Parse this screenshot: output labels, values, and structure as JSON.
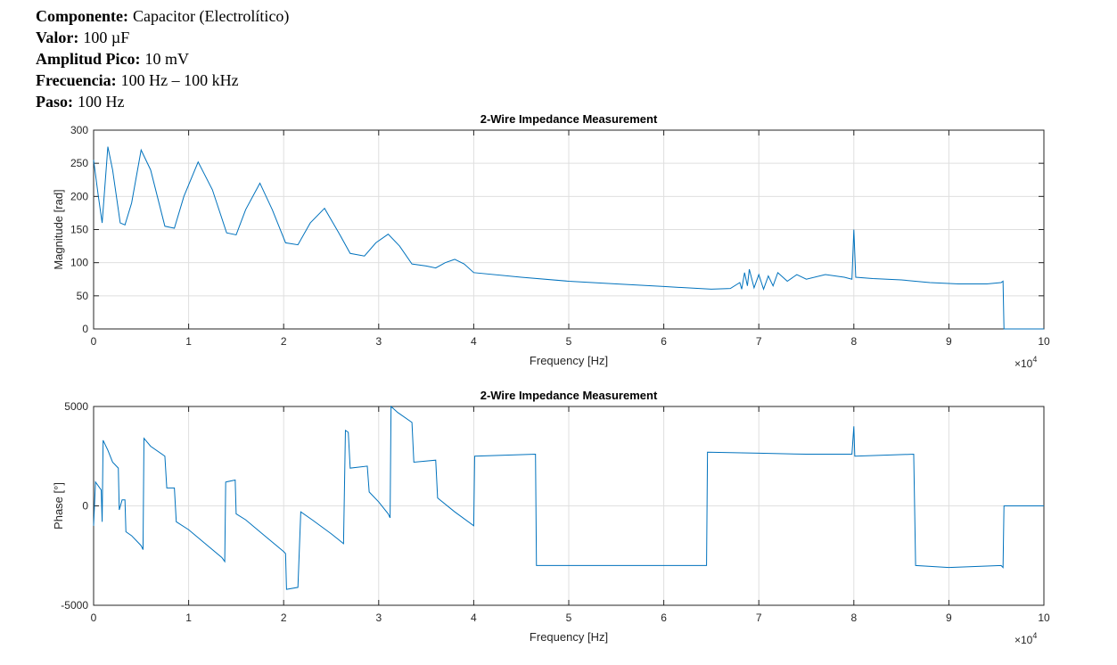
{
  "header": {
    "lines": [
      {
        "label": "Componente:",
        "value": "Capacitor (Electrolítico)"
      },
      {
        "label": "Valor:",
        "value": "100 µF"
      },
      {
        "label": "Amplitud Pico:",
        "value": "10 mV"
      },
      {
        "label": "Frecuencia:",
        "value": "100 Hz – 100 kHz"
      },
      {
        "label": "Paso:",
        "value": "100 Hz"
      }
    ]
  },
  "chart_data": [
    {
      "type": "line",
      "title": "2-Wire Impedance Measurement",
      "x_label": "Frequency [Hz]",
      "y_label": "Magnitude [rad]",
      "x_scale": {
        "base": "×10",
        "exponent": "4"
      },
      "color": "#0072bd",
      "grid": true,
      "xlim": [
        0,
        10
      ],
      "xticks": [
        0,
        1,
        2,
        3,
        4,
        5,
        6,
        7,
        8,
        9,
        10
      ],
      "ylim": [
        0,
        300
      ],
      "yticks": [
        0,
        50,
        100,
        150,
        200,
        250,
        300
      ],
      "x": [
        0,
        0.05,
        0.09,
        0.15,
        0.2,
        0.28,
        0.33,
        0.4,
        0.5,
        0.6,
        0.75,
        0.85,
        0.95,
        1.1,
        1.25,
        1.4,
        1.5,
        1.6,
        1.75,
        1.88,
        2.02,
        2.15,
        2.28,
        2.43,
        2.58,
        2.7,
        2.85,
        2.97,
        3.1,
        3.22,
        3.35,
        3.5,
        3.6,
        3.7,
        3.8,
        3.9,
        4.0,
        4.5,
        5.0,
        5.5,
        6.0,
        6.5,
        6.7,
        6.8,
        6.82,
        6.85,
        6.88,
        6.9,
        6.95,
        7.0,
        7.05,
        7.1,
        7.15,
        7.2,
        7.3,
        7.4,
        7.5,
        7.7,
        7.9,
        7.98,
        8.0,
        8.02,
        8.2,
        8.5,
        8.8,
        9.1,
        9.4,
        9.55,
        9.57,
        9.58,
        10
      ],
      "values": [
        255,
        200,
        160,
        275,
        240,
        160,
        157,
        190,
        270,
        240,
        155,
        152,
        200,
        252,
        210,
        145,
        142,
        180,
        220,
        180,
        130,
        127,
        160,
        182,
        145,
        114,
        110,
        130,
        143,
        125,
        98,
        95,
        92,
        100,
        105,
        98,
        85,
        78,
        72,
        68,
        64,
        60,
        61,
        70,
        60,
        85,
        65,
        90,
        62,
        82,
        60,
        80,
        65,
        85,
        72,
        82,
        75,
        82,
        78,
        75,
        150,
        78,
        76,
        74,
        70,
        68,
        68,
        70,
        72,
        0,
        0
      ]
    },
    {
      "type": "line",
      "title": "2-Wire Impedance Measurement",
      "x_label": "Frequency [Hz]",
      "y_label": "Phase [°]",
      "x_scale": {
        "base": "×10",
        "exponent": "4"
      },
      "color": "#0072bd",
      "grid": true,
      "xlim": [
        0,
        10
      ],
      "xticks": [
        0,
        1,
        2,
        3,
        4,
        5,
        6,
        7,
        8,
        9,
        10
      ],
      "ylim": [
        -5000,
        5000
      ],
      "yticks": [
        -5000,
        0,
        5000
      ],
      "x": [
        0,
        0.02,
        0.08,
        0.09,
        0.1,
        0.15,
        0.2,
        0.26,
        0.27,
        0.3,
        0.33,
        0.34,
        0.4,
        0.5,
        0.52,
        0.53,
        0.6,
        0.75,
        0.77,
        0.85,
        0.87,
        1.0,
        1.2,
        1.35,
        1.38,
        1.39,
        1.49,
        1.5,
        1.6,
        1.8,
        2.0,
        2.02,
        2.03,
        2.15,
        2.18,
        2.3,
        2.5,
        2.63,
        2.65,
        2.68,
        2.7,
        2.88,
        2.9,
        3.0,
        3.1,
        3.12,
        3.13,
        3.2,
        3.35,
        3.37,
        3.6,
        3.62,
        3.8,
        4.0,
        4.01,
        4.65,
        4.66,
        6.45,
        6.46,
        7.0,
        7.5,
        7.98,
        8.0,
        8.01,
        8.63,
        8.65,
        9.0,
        9.55,
        9.57,
        9.58,
        10
      ],
      "values": [
        -1000,
        1200,
        800,
        -800,
        3300,
        2800,
        2200,
        1900,
        -200,
        300,
        300,
        -1300,
        -1500,
        -2000,
        -2200,
        3400,
        3000,
        2500,
        900,
        900,
        -800,
        -1200,
        -2000,
        -2600,
        -2800,
        1200,
        1300,
        -400,
        -700,
        -1500,
        -2300,
        -2400,
        -4200,
        -4100,
        -300,
        -700,
        -1400,
        -1900,
        3800,
        3700,
        1900,
        2000,
        700,
        200,
        -400,
        -600,
        5000,
        4700,
        4200,
        2200,
        2300,
        400,
        -300,
        -1000,
        2500,
        2600,
        -3000,
        -3000,
        2700,
        2650,
        2600,
        2600,
        4000,
        2500,
        2600,
        -3000,
        -3100,
        -3000,
        -3100,
        0,
        0
      ]
    }
  ]
}
